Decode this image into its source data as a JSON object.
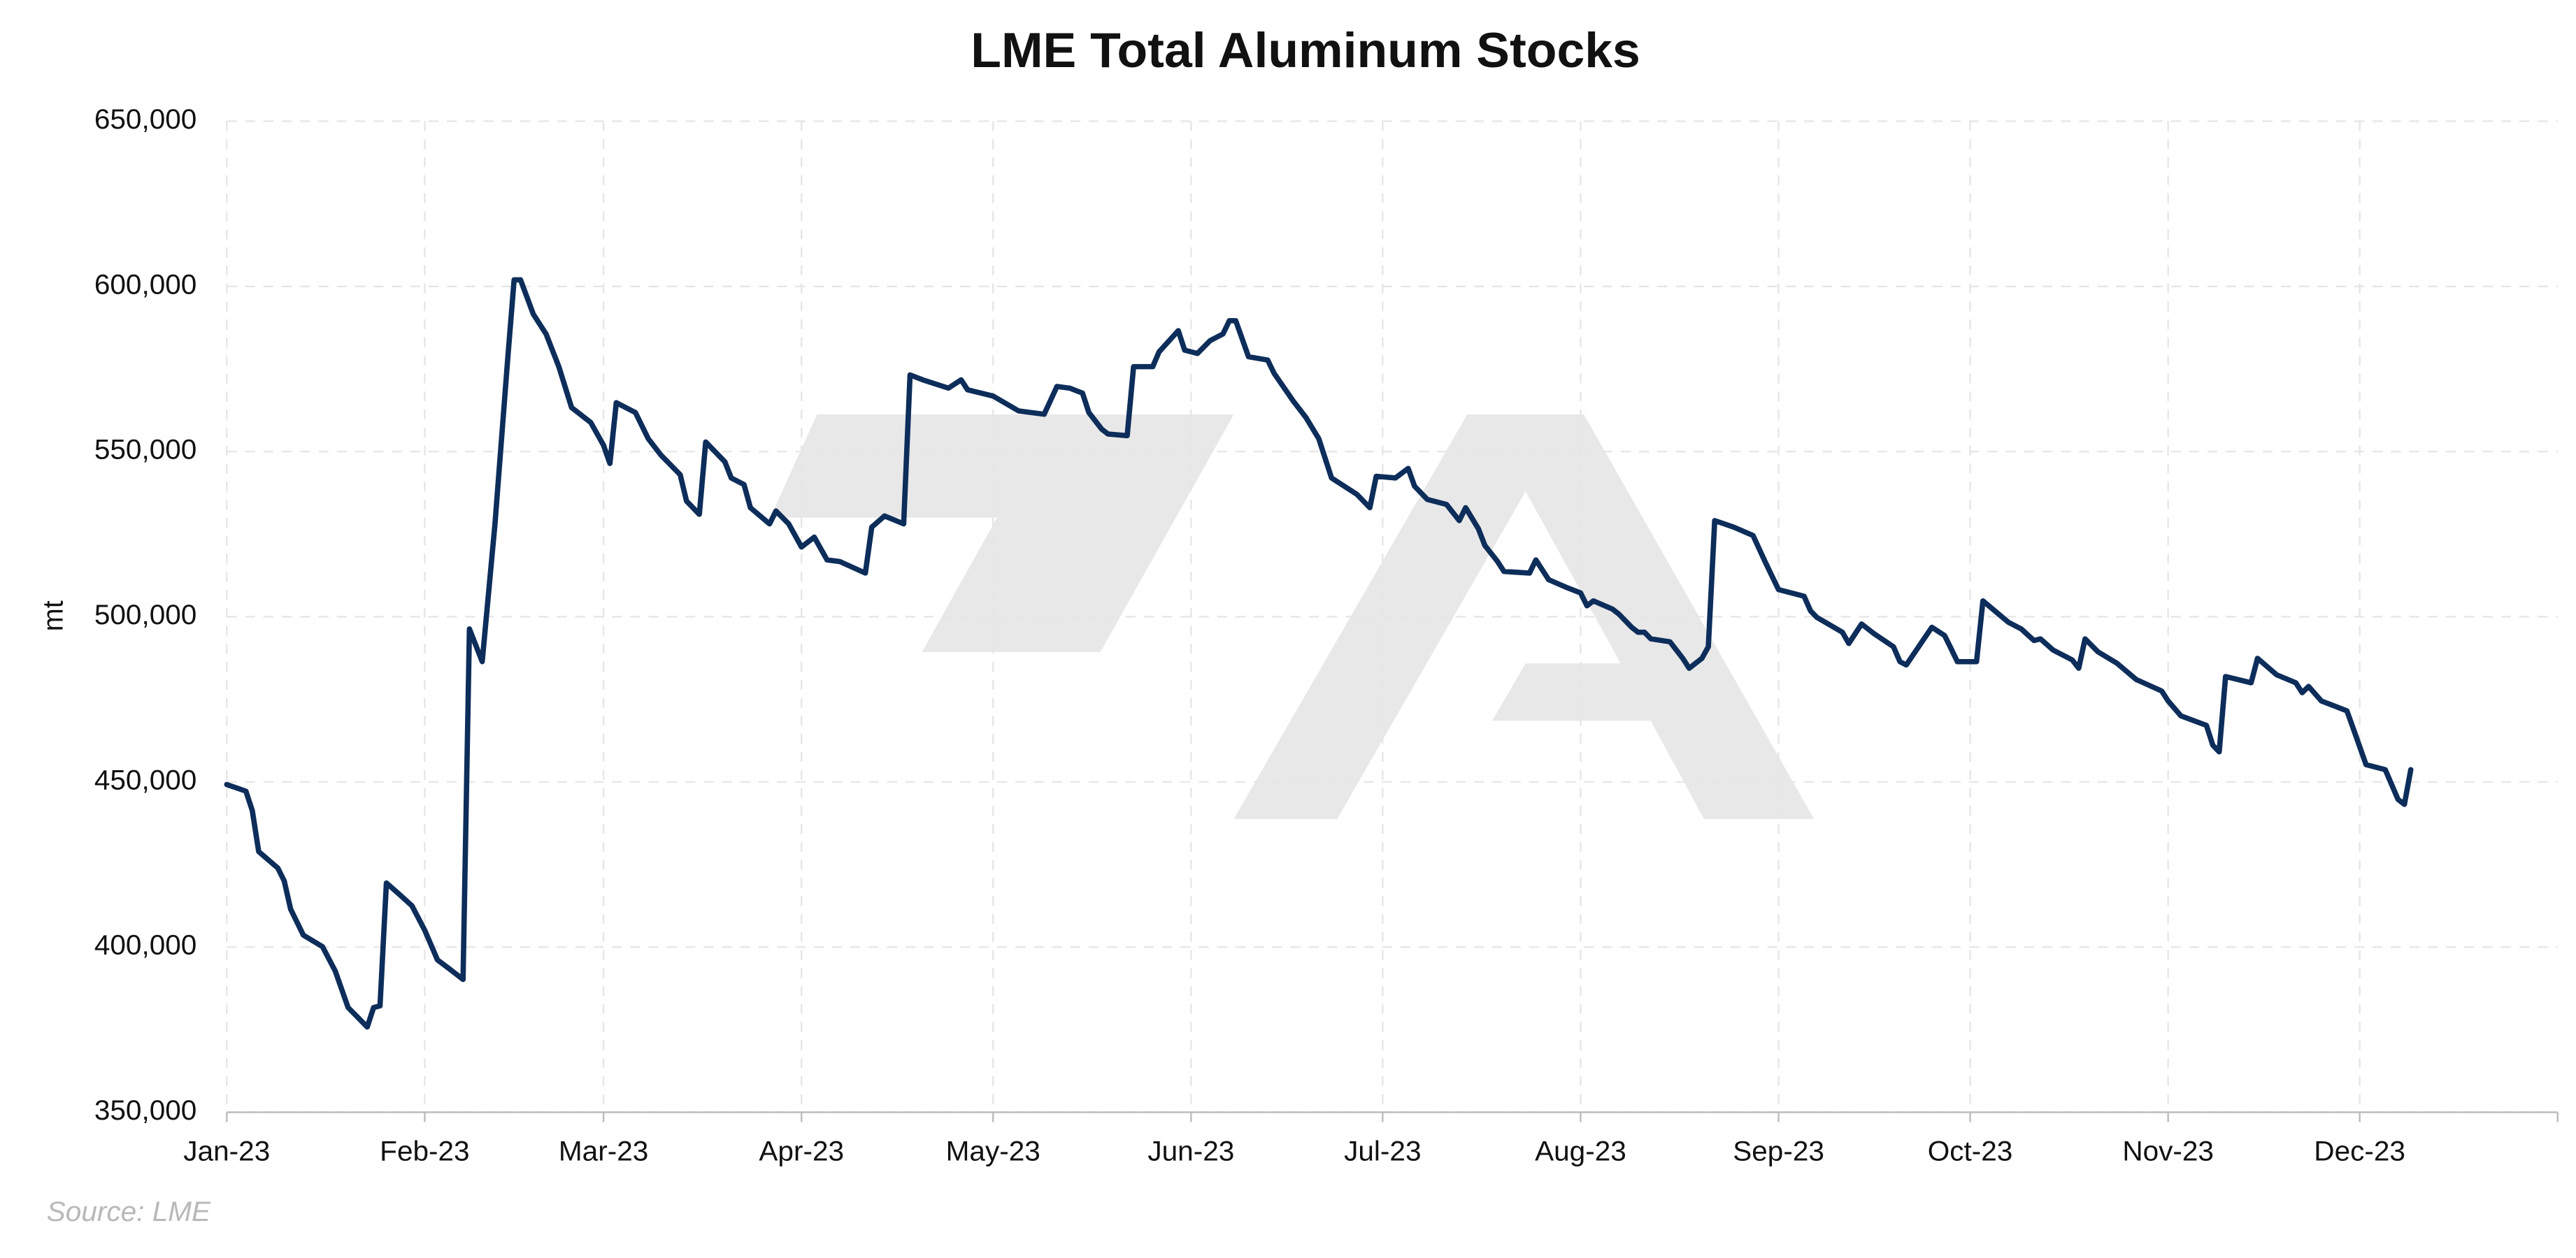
{
  "chart_data": {
    "type": "line",
    "title": "LME Total Aluminum Stocks",
    "ylabel": "mt",
    "source": "Source: LME",
    "color": "#0d2d5a",
    "grid": true,
    "xlim": [
      0,
      365
    ],
    "xticks": [
      {
        "value": 0,
        "label": "Jan-23"
      },
      {
        "value": 31,
        "label": "Feb-23"
      },
      {
        "value": 59,
        "label": "Mar-23"
      },
      {
        "value": 90,
        "label": "Apr-23"
      },
      {
        "value": 120,
        "label": "May-23"
      },
      {
        "value": 151,
        "label": "Jun-23"
      },
      {
        "value": 181,
        "label": "Jul-23"
      },
      {
        "value": 212,
        "label": "Aug-23"
      },
      {
        "value": 243,
        "label": "Sep-23"
      },
      {
        "value": 273,
        "label": "Oct-23"
      },
      {
        "value": 304,
        "label": "Nov-23"
      },
      {
        "value": 334,
        "label": "Dec-23"
      }
    ],
    "ylim": [
      350000,
      650000
    ],
    "yticks": [
      {
        "value": 350000,
        "label": "350,000"
      },
      {
        "value": 400000,
        "label": "400,000"
      },
      {
        "value": 450000,
        "label": "450,000"
      },
      {
        "value": 500000,
        "label": "500,000"
      },
      {
        "value": 550000,
        "label": "550,000"
      },
      {
        "value": 600000,
        "label": "600,000"
      },
      {
        "value": 650000,
        "label": "650,000"
      }
    ],
    "x": [
      0,
      3,
      4,
      5,
      8,
      9,
      10,
      12,
      15,
      17,
      19,
      22,
      23,
      24,
      25,
      27,
      29,
      31,
      33,
      35,
      37,
      38,
      40,
      42,
      44,
      45,
      46,
      48,
      50,
      52,
      54,
      57,
      59,
      60,
      61,
      64,
      66,
      68,
      71,
      72,
      74,
      75,
      78,
      79,
      81,
      82,
      85,
      86,
      88,
      90,
      92,
      94,
      96,
      100,
      101,
      103,
      106,
      107,
      109,
      113,
      115,
      116,
      120,
      124,
      128,
      130,
      132,
      134,
      135,
      137,
      138,
      141,
      142,
      145,
      146,
      149,
      150,
      152,
      154,
      156,
      157,
      158,
      160,
      163,
      164,
      167,
      169,
      171,
      173,
      177,
      179,
      180,
      183,
      185,
      186,
      188,
      191,
      193,
      194,
      196,
      197,
      199,
      200,
      204,
      205,
      207,
      210,
      212,
      213,
      214,
      217,
      218,
      220,
      221,
      222,
      223,
      226,
      227,
      228,
      229,
      231,
      232,
      233,
      236,
      239,
      241,
      243,
      247,
      248,
      249,
      253,
      254,
      256,
      258,
      261,
      262,
      263,
      267,
      269,
      270,
      271,
      274,
      275,
      279,
      281,
      283,
      284,
      286,
      289,
      290,
      291,
      293,
      296,
      299,
      303,
      304,
      306,
      310,
      311,
      312,
      313,
      317,
      318,
      321,
      324,
      325,
      326,
      328,
      330,
      332,
      333,
      335,
      338,
      340,
      341,
      342
    ],
    "values": [
      449200,
      447200,
      441300,
      428900,
      423900,
      420000,
      411500,
      403600,
      400100,
      392700,
      381700,
      375800,
      381700,
      382200,
      419400,
      416000,
      412500,
      405100,
      396100,
      393200,
      390200,
      496300,
      486400,
      528100,
      578200,
      602000,
      602000,
      591600,
      585600,
      575700,
      563300,
      558800,
      551900,
      546400,
      564800,
      561800,
      553900,
      548900,
      543000,
      535000,
      531000,
      552900,
      546900,
      542000,
      540000,
      533000,
      528100,
      532000,
      528100,
      521100,
      524100,
      517200,
      516700,
      513200,
      527100,
      530500,
      528100,
      573200,
      571700,
      569200,
      571700,
      568700,
      566800,
      562300,
      561300,
      569700,
      569200,
      567700,
      561800,
      556800,
      555300,
      554800,
      575700,
      575700,
      580200,
      586600,
      580700,
      579700,
      583600,
      585600,
      589600,
      589600,
      578700,
      577700,
      573700,
      565300,
      560300,
      553900,
      542000,
      537000,
      533000,
      542500,
      542000,
      544900,
      539500,
      535500,
      534000,
      529100,
      533000,
      526600,
      521600,
      516700,
      513700,
      513200,
      517200,
      511200,
      508700,
      507200,
      503300,
      504800,
      502300,
      500800,
      496800,
      495300,
      495300,
      493300,
      492400,
      489900,
      487400,
      484400,
      487400,
      490900,
      529100,
      527100,
      524600,
      516200,
      508200,
      506200,
      501800,
      499800,
      495300,
      491900,
      497800,
      494800,
      490900,
      486400,
      485400,
      496800,
      494300,
      490400,
      486400,
      486400,
      504800,
      498300,
      496300,
      492800,
      493300,
      489900,
      486900,
      484400,
      493300,
      489400,
      485900,
      481000,
      477500,
      474500,
      470000,
      467100,
      461100,
      459100,
      481900,
      480000,
      487400,
      482400,
      480000,
      477000,
      478900,
      474500,
      473000,
      471500,
      466100,
      455200,
      453700,
      444700,
      443200,
      453700
    ]
  }
}
